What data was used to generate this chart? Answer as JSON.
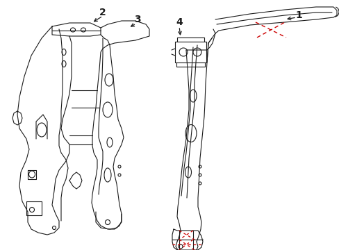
{
  "background_color": "#ffffff",
  "line_color": "#1a1a1a",
  "red_color": "#cc0000",
  "label_color": "#000000",
  "figsize": [
    4.89,
    3.6
  ],
  "dpi": 100,
  "lw": 0.8,
  "lw_thick": 1.2
}
